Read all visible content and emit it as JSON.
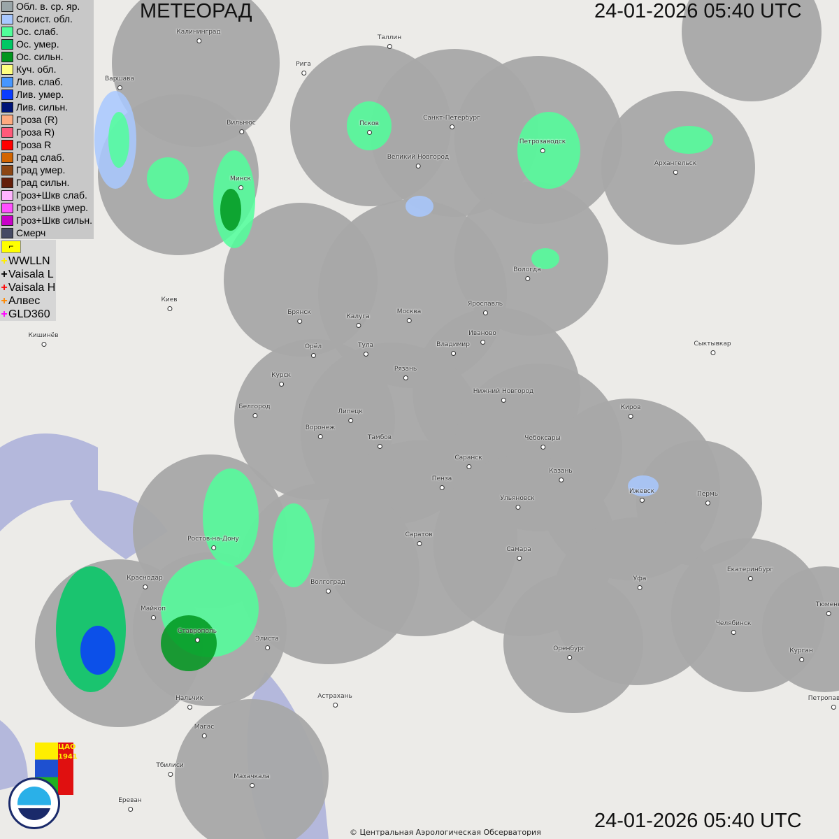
{
  "header": {
    "title": "МЕТЕОРАД",
    "datetime_top": "24-01-2026  05:40 UTC",
    "datetime_bottom": "24-01-2026  05:40 UTC"
  },
  "legend": [
    {
      "label": "Обл. в. ср. яр.",
      "color": "#9aa5a8"
    },
    {
      "label": "Слоист. обл.",
      "color": "#a8c8ff"
    },
    {
      "label": "Ос. слаб.",
      "color": "#50ff9a"
    },
    {
      "label": "Ос. умер.",
      "color": "#00c864"
    },
    {
      "label": "Ос. сильн.",
      "color": "#00961e"
    },
    {
      "label": "Куч. обл.",
      "color": "#ffff80"
    },
    {
      "label": "Лив. слаб.",
      "color": "#4696ff"
    },
    {
      "label": "Лив. умер.",
      "color": "#0a3cff"
    },
    {
      "label": "Лив. сильн.",
      "color": "#001478"
    },
    {
      "label": "Гроза (R)",
      "color": "#ffaa80"
    },
    {
      "label": "Гроза R)",
      "color": "#ff5a7a"
    },
    {
      "label": "Гроза R",
      "color": "#ff0000"
    },
    {
      "label": "Град слаб.",
      "color": "#d26400"
    },
    {
      "label": "Град умер.",
      "color": "#8c4614"
    },
    {
      "label": "Град сильн.",
      "color": "#641e0a"
    },
    {
      "label": "Гроз+Шкв слаб.",
      "color": "#ffb4ff"
    },
    {
      "label": "Гроз+Шкв умер.",
      "color": "#ff50ff"
    },
    {
      "label": "Гроз+Шкв сильн.",
      "color": "#c800c8"
    },
    {
      "label": "Смерч",
      "color": "#464a64"
    }
  ],
  "lightning": [
    {
      "label": "WWLLN",
      "color": "#ffee00"
    },
    {
      "label": "Vaisala L",
      "color": "#000000"
    },
    {
      "label": "Vaisala H",
      "color": "#ff0000"
    },
    {
      "label": "Алвес",
      "color": "#ff8800"
    },
    {
      "label": "GLD360",
      "color": "#ff00ff"
    }
  ],
  "cities": [
    "Калининград",
    "Таллин",
    "Рига",
    "Варшава",
    "Вильнюс",
    "Псков",
    "Санкт-Петербург",
    "Петрозаводск",
    "Архангельск",
    "Великий Новгород",
    "Минск",
    "Вологда",
    "Киев",
    "Брянск",
    "Калуга",
    "Москва",
    "Ярославль",
    "Иваново",
    "Кишинёв",
    "Орёл",
    "Тула",
    "Владимир",
    "Сыктывкар",
    "Рязань",
    "Курск",
    "Нижний Новгород",
    "Белгород",
    "Липецк",
    "Киров",
    "Воронеж",
    "Тамбов",
    "Чебоксары",
    "Саранск",
    "Казань",
    "Пенза",
    "Ижевск",
    "Пермь",
    "Ульяновск",
    "Саратов",
    "Ростов-на-Дону",
    "Самара",
    "Краснодар",
    "Волгоград",
    "Уфа",
    "Екатеринбург",
    "Майкоп",
    "Тюмень",
    "Челябинск",
    "Ставрополь",
    "Элиста",
    "Оренбург",
    "Курган",
    "Астрахань",
    "Нальчик",
    "Петропавловск",
    "Магас",
    "Тбилиси",
    "Махачкала",
    "Ереван"
  ],
  "logos": {
    "cao": "ЦАО 1941",
    "roshydromet": "РОСГИДРОМЕТ ROSHYDROMET"
  },
  "copyright": "© Центральная Аэрологическая Обсерватория"
}
